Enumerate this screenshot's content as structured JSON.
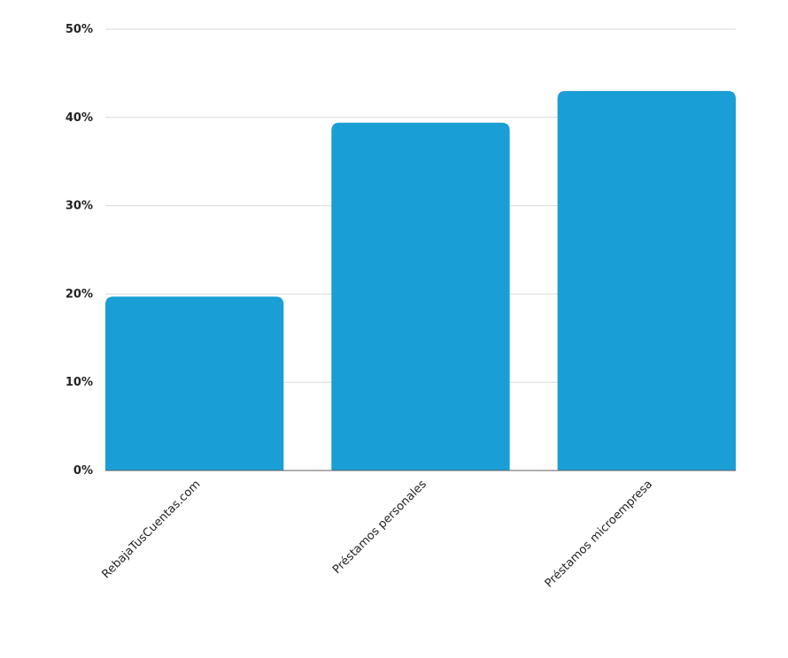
{
  "chart_data": {
    "type": "bar",
    "categories": [
      "RebajaTusCuentas.com",
      "Préstamos personales",
      "Préstamos microempresa"
    ],
    "values": [
      19.7,
      39.4,
      43.0
    ],
    "unit": "%",
    "ylim": [
      0,
      50
    ],
    "yticks": [
      "0%",
      "10%",
      "20%",
      "30%",
      "40%",
      "50%"
    ],
    "title": "",
    "xlabel": "",
    "ylabel": "",
    "grid": true,
    "legend": "none",
    "bar_color": "#199ed5"
  }
}
